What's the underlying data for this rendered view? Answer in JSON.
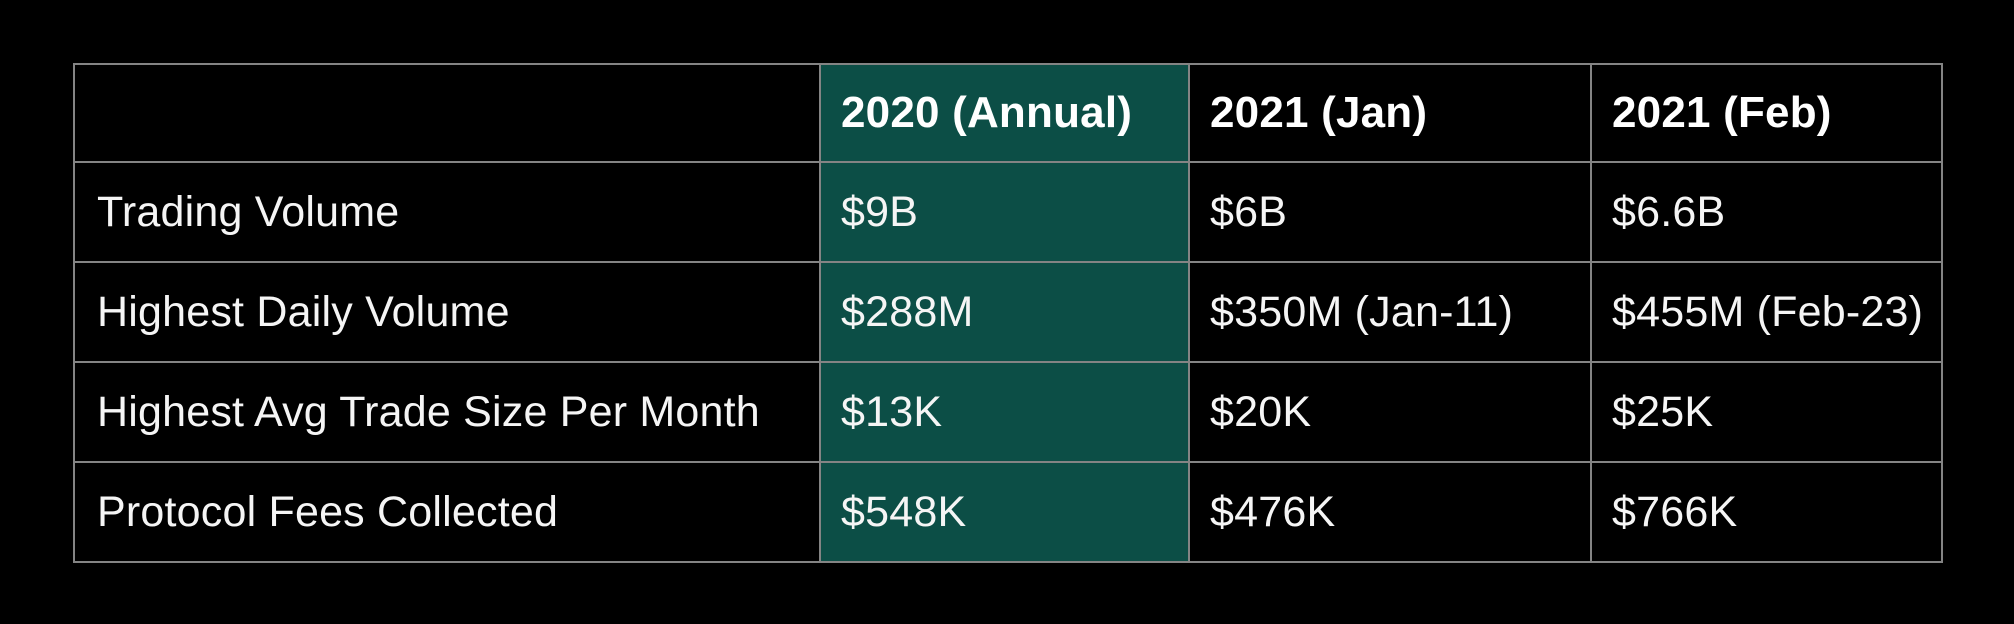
{
  "page": {
    "background": "#000000"
  },
  "table": {
    "columns": [
      "",
      "2020 (Annual)",
      "2021 (Jan)",
      "2021 (Feb)"
    ],
    "highlight_column": "2020 (Annual)",
    "rows": [
      {
        "label": "Trading Volume",
        "values": [
          "$9B",
          "$6B",
          "$6.6B"
        ]
      },
      {
        "label": "Highest Daily Volume",
        "values": [
          "$288M",
          "$350M (Jan-11)",
          "$455M (Feb-23)"
        ]
      },
      {
        "label": "Highest Avg Trade Size Per Month",
        "values": [
          "$13K",
          "$20K",
          "$25K"
        ]
      },
      {
        "label": "Protocol Fees Collected",
        "values": [
          "$548K",
          "$476K",
          "$766K"
        ]
      }
    ],
    "colors": {
      "highlight_teal": "#0C4E46",
      "grid_line": "#848484",
      "table_background": "#000000",
      "header_text": "#FFFFFF",
      "body_text": "#F5F5F5"
    }
  },
  "chart_data": {
    "type": "table",
    "columns": [
      "",
      "2020 (Annual)",
      "2021 (Jan)",
      "2021 (Feb)"
    ],
    "rows": [
      {
        "label": "Trading Volume",
        "values": [
          "$9B",
          "$6B",
          "$6.6B"
        ]
      },
      {
        "label": "Highest Daily Volume",
        "values": [
          "$288M",
          "$350M (Jan-11)",
          "$455M (Feb-23)"
        ]
      },
      {
        "label": "Highest Avg Trade Size Per Month",
        "values": [
          "$13K",
          "$20K",
          "$25K"
        ]
      },
      {
        "label": "Protocol Fees Collected",
        "values": [
          "$548K",
          "$476K",
          "$766K"
        ]
      }
    ],
    "layout": {
      "highlighted_column_index": 1,
      "highlight_color": "#0C4E46",
      "grid": "on",
      "header_style": "bold",
      "background": "#000000"
    }
  }
}
